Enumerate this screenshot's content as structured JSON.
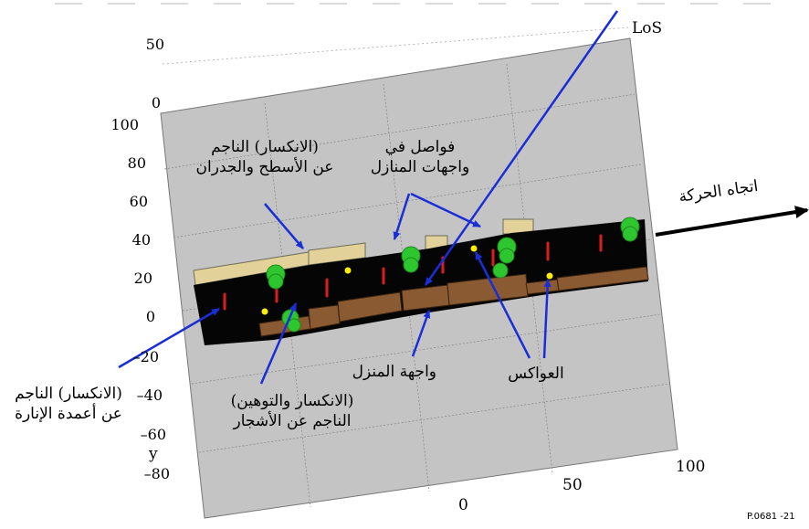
{
  "figure_id": "P.0681 -21",
  "labels": {
    "los": "LoS",
    "roof_wall_diffraction": [
      "(الانكسار) الناجم",
      "عن الأسطح والجدران"
    ],
    "facade_gaps": [
      "فواصل في",
      "واجهات المنازل"
    ],
    "movement_direction": "اتجاه الحركة",
    "lamppost_diffraction": [
      "(الانكسار) الناجم",
      "عن أعمدة الإنارة"
    ],
    "tree_diffraction": [
      "(الانكسار والتوهين)",
      "الناجم عن الأشجار"
    ],
    "house_facade": "واجهة المنزل",
    "reflectors": "العواكس"
  },
  "axes": {
    "z_ticks": [
      "50",
      "0"
    ],
    "y_ticks": [
      "100",
      "80",
      "60",
      "40",
      "20",
      "0",
      "–20",
      "–40",
      "–60",
      "–80"
    ],
    "y_label": "y",
    "x_ticks": [
      "0",
      "50",
      "100"
    ]
  },
  "colors": {
    "ground": "#c4c4c4",
    "street": "#050505",
    "building_front": "#8a5a33",
    "building_back": "#e2d29a",
    "tree": "#2ec62e",
    "lamppost": "#d81e1e",
    "reflector": "#ffee00",
    "arrow": "#1a2ed8"
  }
}
